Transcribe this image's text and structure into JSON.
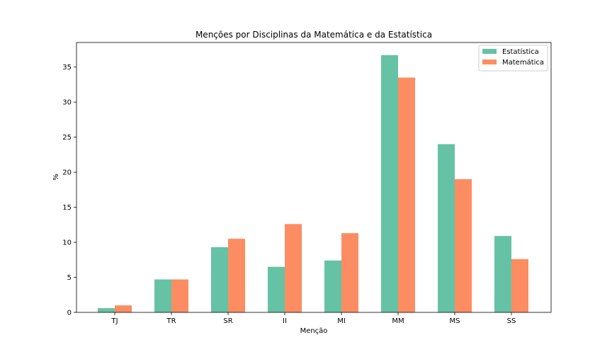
{
  "chart_data": {
    "type": "bar",
    "title": "Menções por Disciplinas da Matemática e da Estatística",
    "xlabel": "Menção",
    "ylabel": "%",
    "categories": [
      "TJ",
      "TR",
      "SR",
      "II",
      "MI",
      "MM",
      "MS",
      "SS"
    ],
    "series": [
      {
        "name": "Estatística",
        "color": "#66c2a5",
        "values": [
          0.6,
          4.7,
          9.3,
          6.5,
          7.4,
          36.7,
          24.0,
          10.9
        ]
      },
      {
        "name": "Matemática",
        "color": "#fc8d62",
        "values": [
          1.0,
          4.7,
          10.5,
          12.6,
          11.3,
          33.5,
          19.0,
          7.6
        ]
      }
    ],
    "ylim": [
      0,
      38.5
    ],
    "yticks": [
      0,
      5,
      10,
      15,
      20,
      25,
      30,
      35
    ],
    "grid": false,
    "legend_position": "top-right"
  }
}
